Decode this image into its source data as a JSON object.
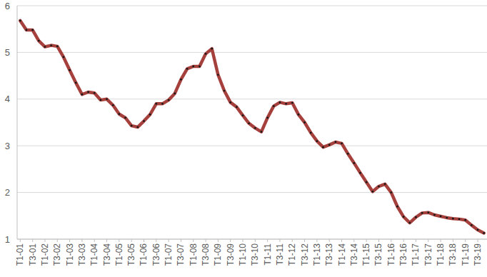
{
  "chart_data": {
    "type": "line",
    "categories": [
      "T1-01",
      null,
      "T3-01",
      null,
      "T1-02",
      null,
      "T3-02",
      null,
      "T1-03",
      null,
      "T3-03",
      null,
      "T1-04",
      null,
      "T3-04",
      null,
      "T1-05",
      null,
      "T3-05",
      null,
      "T1-06",
      null,
      "T3-06",
      null,
      "T1-07",
      null,
      "T3-07",
      null,
      "T1-08",
      null,
      "T3-08",
      null,
      "T1-09",
      null,
      "T3-09",
      null,
      "T1-10",
      null,
      "T3-10",
      null,
      "T1-11",
      null,
      "T3-11",
      null,
      "T1-12",
      null,
      "T3-12",
      null,
      "T1-13",
      null,
      "T3-13",
      null,
      "T1-14",
      null,
      "T3-14",
      null,
      "T1-15",
      null,
      "T3-15",
      null,
      "T1-16",
      null,
      "T3-16",
      null,
      "T1-17",
      null,
      "T3-17",
      null,
      "T1-18",
      null,
      "T3-18",
      null,
      "T1-19",
      null,
      "T3-19",
      null
    ],
    "values": [
      5.68,
      5.48,
      5.48,
      5.25,
      5.12,
      5.15,
      5.13,
      4.9,
      4.62,
      4.35,
      4.1,
      4.15,
      4.13,
      3.98,
      4.0,
      3.87,
      3.68,
      3.6,
      3.43,
      3.4,
      3.53,
      3.67,
      3.9,
      3.9,
      3.98,
      4.12,
      4.42,
      4.65,
      4.7,
      4.7,
      4.97,
      5.08,
      4.52,
      4.18,
      3.93,
      3.83,
      3.65,
      3.48,
      3.38,
      3.3,
      3.6,
      3.85,
      3.93,
      3.9,
      3.92,
      3.67,
      3.5,
      3.28,
      3.1,
      2.97,
      3.02,
      3.08,
      3.05,
      2.83,
      2.63,
      2.42,
      2.22,
      2.02,
      2.13,
      2.18,
      2.0,
      1.7,
      1.48,
      1.35,
      1.47,
      1.56,
      1.57,
      1.52,
      1.49,
      1.46,
      1.44,
      1.43,
      1.41,
      1.3,
      1.2,
      1.13
    ],
    "color": "#a5403c",
    "marker": "circle",
    "ylim": [
      1,
      6
    ],
    "yticks": [
      1,
      2,
      3,
      4,
      5,
      6
    ],
    "grid": true
  }
}
